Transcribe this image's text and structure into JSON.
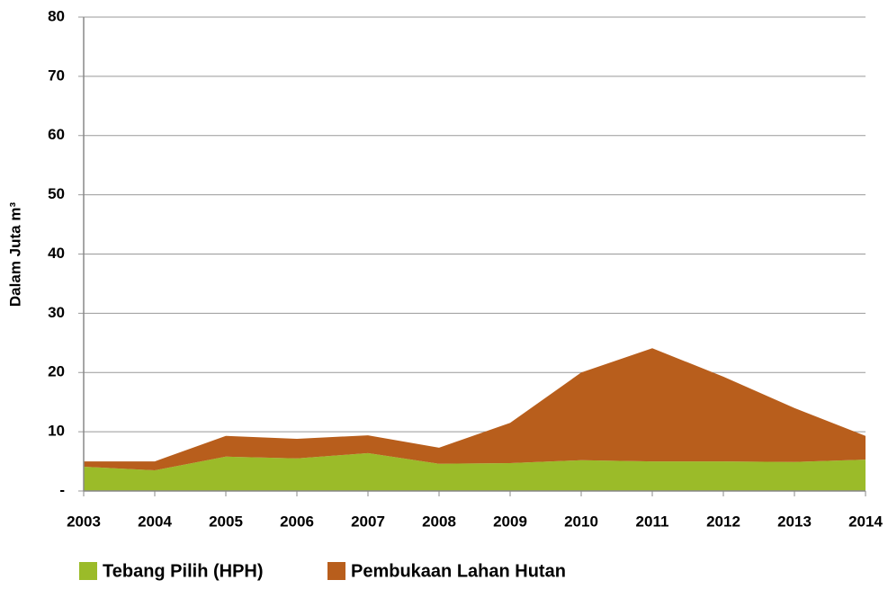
{
  "chart_data": {
    "type": "stacked_area",
    "y_label": "Dalam Juta m³",
    "categories": [
      "2003",
      "2004",
      "2005",
      "2006",
      "2007",
      "2008",
      "2009",
      "2010",
      "2011",
      "2012",
      "2013",
      "2014"
    ],
    "series": [
      {
        "name": "Tebang Pilih (HPH)",
        "color": "#9bbb29",
        "values": [
          4.1,
          3.5,
          5.8,
          5.5,
          6.4,
          4.6,
          4.7,
          5.2,
          5.0,
          5.0,
          4.9,
          5.3
        ]
      },
      {
        "name": "Pembukaan Lahan Hutan",
        "color": "#b85e1c",
        "values": [
          0.9,
          1.5,
          3.5,
          3.3,
          3.0,
          2.7,
          6.8,
          14.8,
          19.1,
          14.3,
          9.1,
          4.0
        ]
      }
    ],
    "ylim": [
      0,
      80
    ],
    "yticks": [
      {
        "value": 0,
        "label": "-"
      },
      10,
      20,
      30,
      40,
      50,
      60,
      70,
      80
    ],
    "grid": true
  }
}
